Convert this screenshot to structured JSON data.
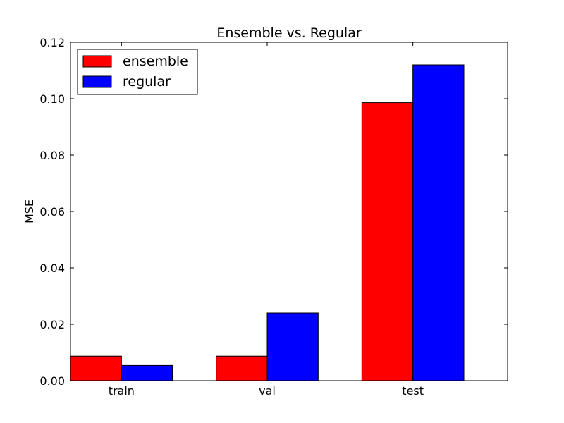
{
  "chart_data": {
    "type": "bar",
    "title": "Ensemble vs. Regular",
    "xlabel": "",
    "ylabel": "MSE",
    "categories": [
      "train",
      "val",
      "test"
    ],
    "series": [
      {
        "name": "ensemble",
        "color": "#ff0000",
        "values": [
          0.0087,
          0.0087,
          0.0986
        ]
      },
      {
        "name": "regular",
        "color": "#0000ff",
        "values": [
          0.0054,
          0.024,
          0.112
        ]
      }
    ],
    "ylim": [
      0,
      0.12
    ],
    "yticks": [
      "0.00",
      "0.02",
      "0.04",
      "0.06",
      "0.08",
      "0.10",
      "0.12"
    ],
    "grid": false,
    "legend_position": "top-left"
  }
}
